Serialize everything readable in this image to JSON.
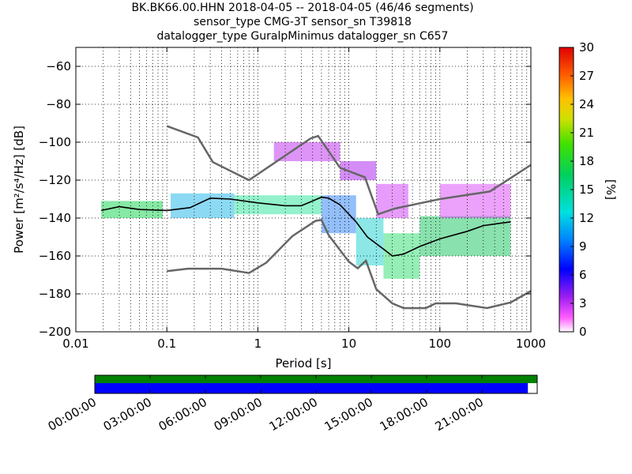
{
  "title_lines": [
    "BK.BK66.00.HHN   2018-04-05 -- 2018-04-05  (46/46 segments)",
    "sensor_type CMG-3T sensor_sn T39818",
    "datalogger_type GuralpMinimus datalogger_sn C657"
  ],
  "chart_data": {
    "type": "heatmap",
    "xlabel": "Period [s]",
    "ylabel": "Power [m²/s⁴/Hz] [dB]",
    "xscale": "log",
    "xlim": [
      0.01,
      1000
    ],
    "ylim": [
      -200,
      -50
    ],
    "x_ticks": [
      {
        "value": 0.01,
        "label": "0.01"
      },
      {
        "value": 0.1,
        "label": "0.1"
      },
      {
        "value": 1,
        "label": "1"
      },
      {
        "value": 10,
        "label": "10"
      },
      {
        "value": 100,
        "label": "100"
      },
      {
        "value": 1000,
        "label": "1000"
      }
    ],
    "y_ticks": [
      {
        "value": -60,
        "label": "−60"
      },
      {
        "value": -80,
        "label": "−80"
      },
      {
        "value": -100,
        "label": "−100"
      },
      {
        "value": -120,
        "label": "−120"
      },
      {
        "value": -140,
        "label": "−140"
      },
      {
        "value": -160,
        "label": "−160"
      },
      {
        "value": -180,
        "label": "−180"
      },
      {
        "value": -200,
        "label": "−200"
      }
    ],
    "grid": true,
    "colorbar": {
      "label": "[%]",
      "range": [
        0,
        30
      ],
      "ticks": [
        "0",
        "3",
        "6",
        "9",
        "12",
        "15",
        "18",
        "21",
        "24",
        "27",
        "30"
      ]
    },
    "noise_models": {
      "high": {
        "color": "#666666",
        "points": [
          [
            0.1,
            -91.5
          ],
          [
            0.22,
            -97.5
          ],
          [
            0.32,
            -110.5
          ],
          [
            0.8,
            -120
          ],
          [
            3.8,
            -98
          ],
          [
            4.6,
            -96.7
          ],
          [
            8,
            -113.5
          ],
          [
            15,
            -118.5
          ],
          [
            21,
            -138
          ],
          [
            32,
            -135
          ],
          [
            100,
            -130
          ],
          [
            354,
            -126
          ],
          [
            1000,
            -112
          ]
        ]
      },
      "low": {
        "color": "#666666",
        "points": [
          [
            0.1,
            -168
          ],
          [
            0.17,
            -166.7
          ],
          [
            0.4,
            -166.7
          ],
          [
            0.8,
            -169
          ],
          [
            1.24,
            -163.5
          ],
          [
            2.4,
            -149.5
          ],
          [
            4.3,
            -141.5
          ],
          [
            5,
            -141
          ],
          [
            6,
            -149
          ],
          [
            10,
            -163
          ],
          [
            12.5,
            -166.5
          ],
          [
            15.4,
            -162.5
          ],
          [
            20,
            -177.5
          ],
          [
            30,
            -185
          ],
          [
            40,
            -187.5
          ],
          [
            70,
            -187.5
          ],
          [
            90,
            -185
          ],
          [
            150,
            -185
          ],
          [
            330,
            -187.5
          ],
          [
            600,
            -184.5
          ],
          [
            1000,
            -178.5
          ]
        ]
      }
    },
    "mode_line": {
      "color": "#000000",
      "points": [
        [
          0.019,
          -136
        ],
        [
          0.03,
          -134
        ],
        [
          0.05,
          -135.5
        ],
        [
          0.1,
          -136
        ],
        [
          0.18,
          -134.5
        ],
        [
          0.3,
          -129.5
        ],
        [
          0.5,
          -130
        ],
        [
          1,
          -132
        ],
        [
          2,
          -133.5
        ],
        [
          3,
          -133.5
        ],
        [
          4,
          -131
        ],
        [
          5,
          -129
        ],
        [
          6,
          -129.5
        ],
        [
          8,
          -133
        ],
        [
          12,
          -142
        ],
        [
          16,
          -150
        ],
        [
          25,
          -157
        ],
        [
          30,
          -160
        ],
        [
          40,
          -159
        ],
        [
          60,
          -155
        ],
        [
          100,
          -151
        ],
        [
          200,
          -147
        ],
        [
          300,
          -144
        ],
        [
          600,
          -142
        ]
      ]
    },
    "density_bands": [
      {
        "x": [
          0.019,
          0.09
        ],
        "y": [
          -140,
          -131
        ],
        "color": "#23d75a"
      },
      {
        "x": [
          0.11,
          0.55
        ],
        "y": [
          -140,
          -127
        ],
        "color": "#2db9eb"
      },
      {
        "x": [
          0.55,
          5
        ],
        "y": [
          -138,
          -128
        ],
        "color": "#3be7a0"
      },
      {
        "x": [
          5,
          12
        ],
        "y": [
          -148,
          -128
        ],
        "color": "#3a8af7"
      },
      {
        "x": [
          12,
          24
        ],
        "y": [
          -165,
          -140
        ],
        "color": "#2fd4d4"
      },
      {
        "x": [
          24,
          60
        ],
        "y": [
          -172,
          -148
        ],
        "color": "#3ee07a"
      },
      {
        "x": [
          60,
          600
        ],
        "y": [
          -160,
          -139
        ],
        "color": "#28c86a"
      },
      {
        "x": [
          1.5,
          8
        ],
        "y": [
          -110,
          -100
        ],
        "color": "#c23cf0"
      },
      {
        "x": [
          8,
          20
        ],
        "y": [
          -120,
          -110
        ],
        "color": "#b030f0"
      },
      {
        "x": [
          20,
          45
        ],
        "y": [
          -140,
          -122
        ],
        "color": "#d34bf7"
      },
      {
        "x": [
          100,
          600
        ],
        "y": [
          -140,
          -122
        ],
        "color": "#dd55f8"
      }
    ]
  },
  "timeline": {
    "time_labels": [
      "00:00:00",
      "03:00:00",
      "06:00:00",
      "09:00:00",
      "12:00:00",
      "15:00:00",
      "18:00:00",
      "21:00:00"
    ],
    "bar_colors": {
      "top": "#008000",
      "bottom": "#0000ff"
    },
    "coverage_fraction": 0.979
  }
}
